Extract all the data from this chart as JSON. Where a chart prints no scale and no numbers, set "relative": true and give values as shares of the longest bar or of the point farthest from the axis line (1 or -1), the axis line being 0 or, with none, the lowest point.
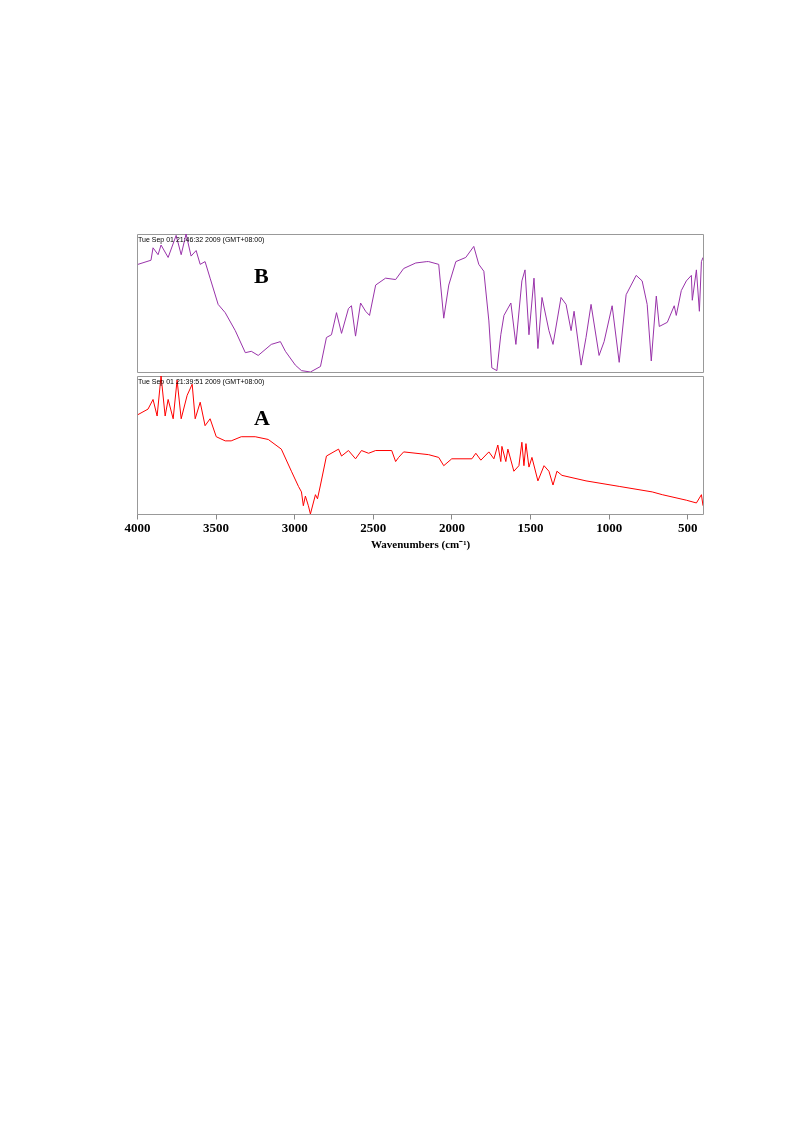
{
  "chart_data": [
    {
      "type": "line",
      "relative": true,
      "annotations": [
        "Tue Sep 01 21:46:32 2009 (GMT+08:00)",
        "B"
      ],
      "xlim": [
        4000,
        400
      ],
      "xticks": [
        4000,
        3500,
        3000,
        2500,
        2000,
        1500,
        1000,
        500
      ],
      "tick_labels": false,
      "series": [
        {
          "color": "#9933aa",
          "x": [
            3994,
            3911,
            3898,
            3866,
            3847,
            3802,
            3751,
            3719,
            3688,
            3656,
            3624,
            3598,
            3567,
            3535,
            3484,
            3439,
            3375,
            3311,
            3273,
            3229,
            3146,
            3088,
            3056,
            2993,
            2954,
            2897,
            2833,
            2795,
            2763,
            2731,
            2699,
            2655,
            2636,
            2610,
            2578,
            2546,
            2521,
            2482,
            2419,
            2355,
            2304,
            2227,
            2157,
            2145,
            2081,
            2049,
            2017,
            1972,
            1909,
            1858,
            1826,
            1794,
            1762,
            1743,
            1711,
            1686,
            1666,
            1622,
            1590,
            1552,
            1532,
            1507,
            1475,
            1450,
            1424,
            1380,
            1354,
            1303,
            1271,
            1239,
            1220,
            1175,
            1144,
            1112,
            1061,
            1029,
            978,
            933,
            889,
            825,
            787,
            755,
            729,
            697,
            678,
            627,
            583,
            570,
            538,
            506,
            474,
            468,
            442,
            423,
            410,
            400
          ],
          "values": [
            0.78,
            0.81,
            0.9,
            0.85,
            0.92,
            0.83,
            0.99,
            0.85,
            1.0,
            0.84,
            0.88,
            0.78,
            0.8,
            0.68,
            0.49,
            0.43,
            0.3,
            0.14,
            0.15,
            0.12,
            0.2,
            0.22,
            0.15,
            0.05,
            0.01,
            0.0,
            0.04,
            0.25,
            0.27,
            0.43,
            0.28,
            0.46,
            0.48,
            0.26,
            0.5,
            0.44,
            0.41,
            0.63,
            0.68,
            0.67,
            0.75,
            0.79,
            0.8,
            0.8,
            0.78,
            0.39,
            0.63,
            0.8,
            0.83,
            0.91,
            0.78,
            0.73,
            0.37,
            0.03,
            0.01,
            0.27,
            0.41,
            0.5,
            0.2,
            0.66,
            0.74,
            0.27,
            0.68,
            0.17,
            0.54,
            0.3,
            0.2,
            0.54,
            0.49,
            0.3,
            0.44,
            0.05,
            0.25,
            0.49,
            0.12,
            0.22,
            0.48,
            0.07,
            0.56,
            0.7,
            0.66,
            0.49,
            0.08,
            0.55,
            0.33,
            0.36,
            0.48,
            0.41,
            0.59,
            0.66,
            0.7,
            0.52,
            0.74,
            0.44,
            0.8,
            0.83
          ]
        }
      ]
    },
    {
      "type": "line",
      "relative": true,
      "annotations": [
        "Tue Sep 01 21:39:51 2009 (GMT+08:00)",
        "A"
      ],
      "xlabel": "Wavenumbers (cm⁻¹)",
      "xlim": [
        4000,
        400
      ],
      "xticks": [
        4000,
        3500,
        3000,
        2500,
        2000,
        1500,
        1000,
        500
      ],
      "tick_labels": "x",
      "series": [
        {
          "color": "#ff0000",
          "x": [
            3994,
            3930,
            3898,
            3872,
            3847,
            3821,
            3802,
            3770,
            3745,
            3719,
            3681,
            3649,
            3630,
            3598,
            3567,
            3535,
            3496,
            3439,
            3401,
            3337,
            3248,
            3165,
            3082,
            3018,
            2973,
            2954,
            2942,
            2929,
            2910,
            2897,
            2865,
            2852,
            2833,
            2795,
            2718,
            2699,
            2655,
            2610,
            2572,
            2527,
            2482,
            2380,
            2355,
            2336,
            2304,
            2145,
            2081,
            2049,
            1998,
            1870,
            1845,
            1813,
            1762,
            1730,
            1705,
            1686,
            1679,
            1654,
            1641,
            1603,
            1571,
            1552,
            1539,
            1526,
            1507,
            1488,
            1450,
            1411,
            1380,
            1354,
            1329,
            1297,
            1144,
            933,
            723,
            659,
            506,
            442,
            410,
            400
          ],
          "values": [
            0.72,
            0.76,
            0.83,
            0.71,
            1.0,
            0.71,
            0.83,
            0.69,
            0.97,
            0.69,
            0.86,
            0.94,
            0.69,
            0.81,
            0.64,
            0.69,
            0.56,
            0.53,
            0.53,
            0.56,
            0.56,
            0.54,
            0.47,
            0.31,
            0.2,
            0.16,
            0.06,
            0.13,
            0.06,
            0.0,
            0.14,
            0.11,
            0.21,
            0.42,
            0.47,
            0.42,
            0.46,
            0.4,
            0.46,
            0.44,
            0.46,
            0.46,
            0.38,
            0.41,
            0.45,
            0.43,
            0.41,
            0.35,
            0.4,
            0.4,
            0.44,
            0.39,
            0.45,
            0.4,
            0.5,
            0.38,
            0.49,
            0.38,
            0.47,
            0.31,
            0.35,
            0.52,
            0.35,
            0.51,
            0.34,
            0.41,
            0.24,
            0.35,
            0.31,
            0.21,
            0.31,
            0.28,
            0.24,
            0.2,
            0.16,
            0.14,
            0.1,
            0.08,
            0.14,
            0.06
          ]
        }
      ]
    }
  ]
}
